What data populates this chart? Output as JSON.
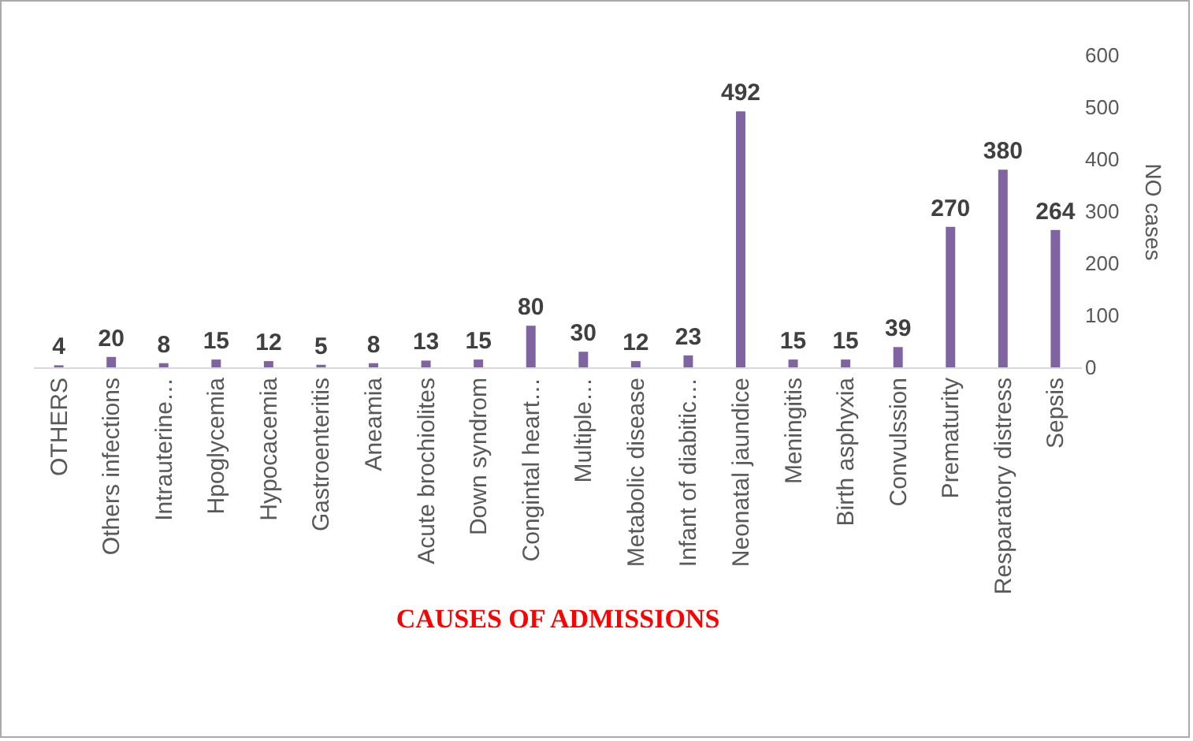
{
  "chart_data": {
    "type": "bar",
    "xlabel": "CAUSES OF ADMISSIONS",
    "ylabel": "NO cases",
    "categories": [
      "OTHERS",
      "Others infections",
      "Intrauterine…",
      "Hpoglycemia",
      "Hypocacemia",
      "Gastroenteritis",
      "Aneamia",
      "Acute brochiolites",
      "Down syndrom",
      "Congintal heart…",
      "Multiple…",
      "Metabolic disease",
      "Infant of diabitic…",
      "Neonatal jaundice",
      "Meningitis",
      "Birth asphyxia",
      "Convulssion",
      "Prematurity",
      "Resparatory distress",
      "Sepsis"
    ],
    "values": [
      4,
      20,
      8,
      15,
      12,
      5,
      8,
      13,
      15,
      80,
      30,
      12,
      23,
      492,
      15,
      15,
      39,
      270,
      380,
      264
    ],
    "color": "#8064a2",
    "ylim": [
      0,
      600
    ],
    "yticks": [
      0,
      100,
      200,
      300,
      400,
      500,
      600
    ],
    "data_labels": true
  }
}
